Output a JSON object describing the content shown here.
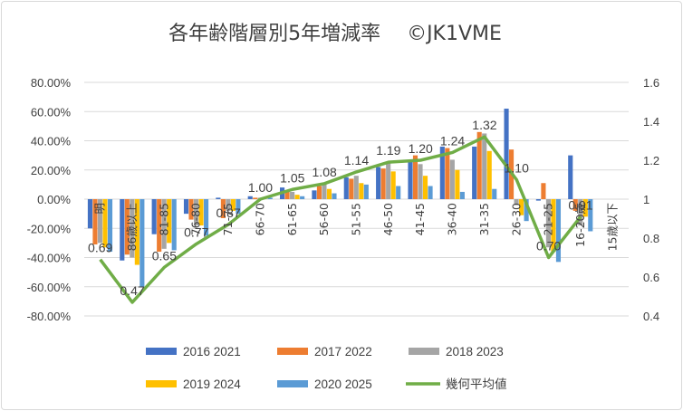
{
  "chart_data": {
    "type": "bar",
    "title": "各年齢階層別5年増減率　 ©JK1VME",
    "categories": [
      "明",
      "86歳以上",
      "81-85",
      "76-80",
      "71-75",
      "66-70",
      "61-65",
      "56-60",
      "51-55",
      "46-50",
      "41-45",
      "36-40",
      "31-35",
      "26-30",
      "21-25",
      "16-20歳",
      "15歳以下"
    ],
    "y_left": {
      "min": -80,
      "max": 80,
      "step": 20,
      "unit": "%",
      "ticks": [
        "80.00%",
        "60.00%",
        "40.00%",
        "20.00%",
        "0.00%",
        "-20.00%",
        "-40.00%",
        "-60.00%",
        "-80.00%"
      ]
    },
    "y_right": {
      "min": 0.4,
      "max": 1.6,
      "step": 0.2,
      "ticks": [
        "1.6",
        "1.4",
        "1.2",
        "1",
        "0.8",
        "0.6",
        "0.4"
      ]
    },
    "series": [
      {
        "name": "2016 2021",
        "color": "#4472C4",
        "axis": "left",
        "values": [
          -20,
          -42,
          -24,
          -10,
          1,
          2,
          8,
          6,
          15,
          22,
          27,
          36,
          36,
          62,
          -1,
          30,
          null
        ]
      },
      {
        "name": "2017 2022",
        "color": "#ED7D31",
        "axis": "left",
        "values": [
          -31,
          -38,
          -36,
          -14,
          -13,
          1,
          5,
          9,
          14,
          21,
          30,
          35,
          46,
          34,
          11,
          -8,
          null
        ]
      },
      {
        "name": "2018 2023",
        "color": "#A5A5A5",
        "axis": "left",
        "values": [
          -30,
          -40,
          -34,
          -18,
          -8,
          1,
          5,
          10,
          16,
          25,
          24,
          27,
          45,
          -4,
          -33,
          -18,
          null
        ]
      },
      {
        "name": "2019 2024",
        "color": "#FFC000",
        "axis": "left",
        "values": [
          -33,
          -45,
          -30,
          -18,
          -8,
          0,
          3,
          7,
          11,
          19,
          16,
          20,
          33,
          -11,
          -36,
          -12,
          null
        ]
      },
      {
        "name": "2020 2025",
        "color": "#5B9BD5",
        "axis": "left",
        "values": [
          -36,
          -60,
          -35,
          -25,
          -10,
          1,
          2,
          4,
          10,
          9,
          9,
          5,
          7,
          -15,
          -43,
          -22,
          null
        ]
      },
      {
        "name": "幾何平均値",
        "type": "line",
        "color": "#70AD47",
        "axis": "right",
        "values": [
          0.69,
          0.47,
          0.65,
          0.77,
          0.87,
          1.0,
          1.05,
          1.08,
          1.14,
          1.19,
          1.2,
          1.24,
          1.32,
          1.1,
          0.7,
          0.91,
          null
        ],
        "labels": [
          "0.69",
          "0.47",
          "0.65",
          "0.77",
          "0.87",
          "1.00",
          "1.05",
          "1.08",
          "1.14",
          "1.19",
          "1.20",
          "1.24",
          "1.32",
          "1.10",
          "0.70",
          "0.91",
          null
        ]
      }
    ],
    "legend_position": "bottom",
    "grid": true
  }
}
